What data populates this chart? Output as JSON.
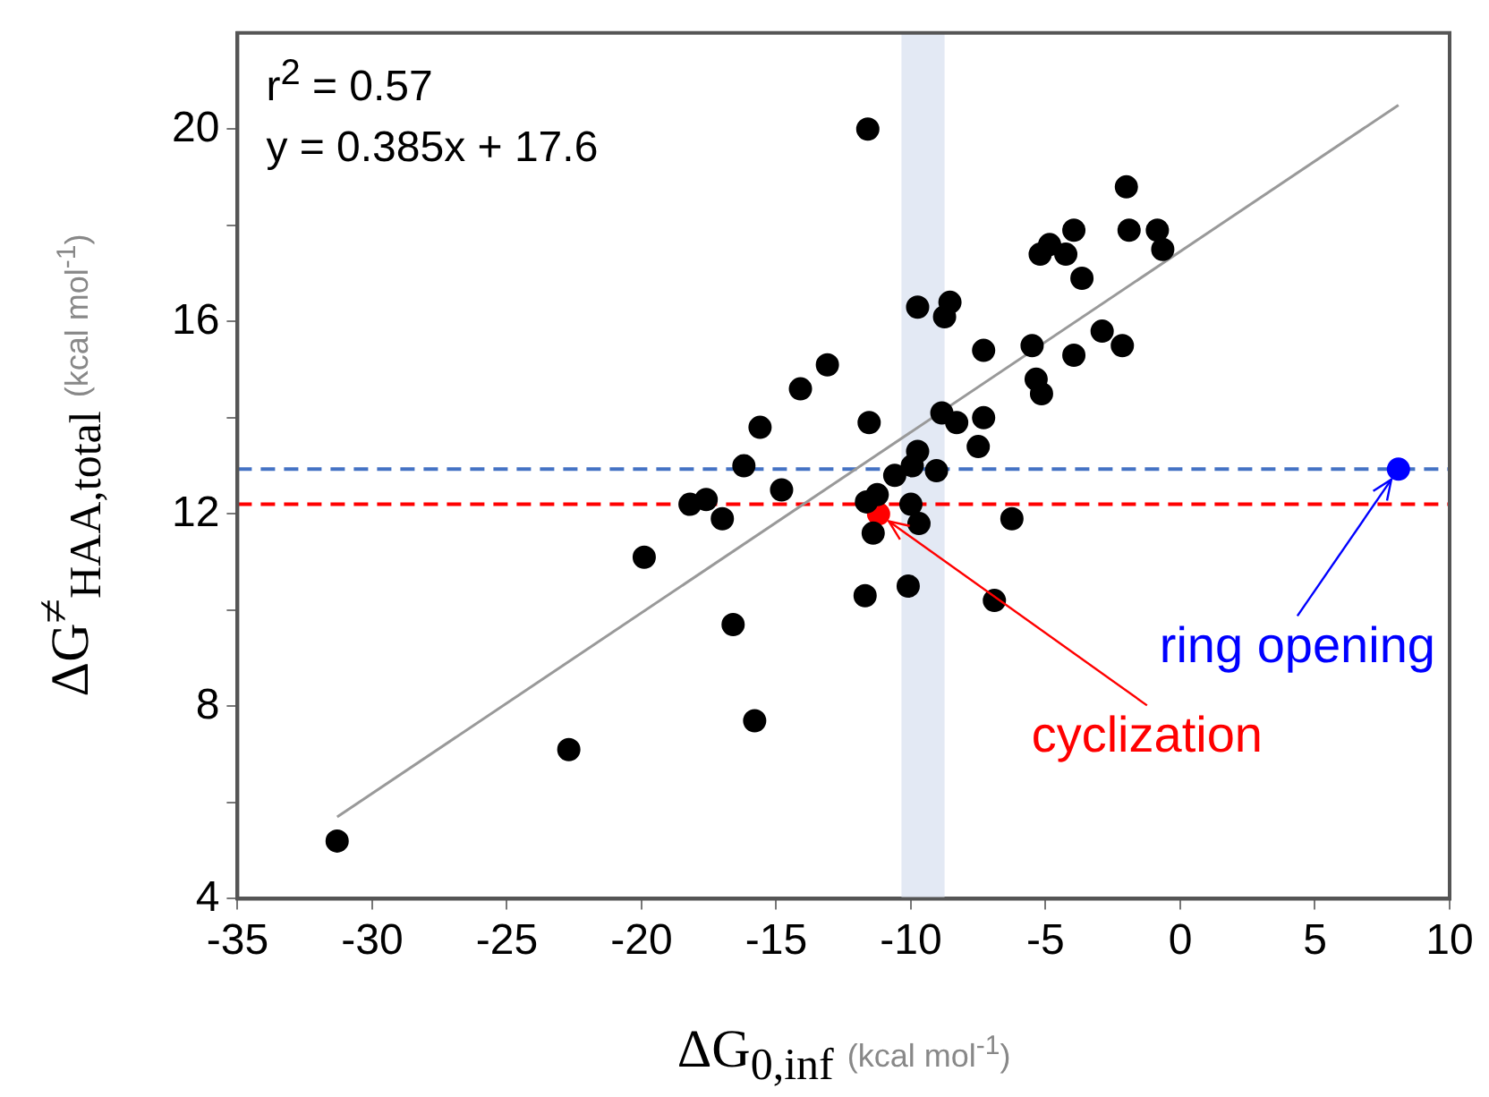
{
  "chart_data": {
    "type": "scatter",
    "xlabel": "ΔG$_{0,inf}$ (kcal mol$^{-1}$)",
    "ylabel": "ΔG$^{≠}$$_{HAA,total}$ (kcal mol$^{-1}$)",
    "xlim": [
      -35,
      10
    ],
    "xticks": [
      -35,
      -30,
      -25,
      -20,
      -15,
      -10,
      -5,
      0,
      5,
      10
    ],
    "ylim": [
      4,
      22
    ],
    "yticks": [
      4,
      {
        "value": 6,
        "label": null
      },
      8,
      {
        "value": 10,
        "label": null
      },
      12,
      {
        "value": 14,
        "label": null
      },
      16,
      {
        "value": 18,
        "label": null
      },
      20
    ],
    "marker": "circle",
    "series": [
      {
        "color": "#000000",
        "x": [
          -31.3,
          -22.7,
          -19.9,
          -18.2,
          -17.6,
          -17.0,
          -16.6,
          -16.2,
          -15.8,
          -15.6,
          -14.8,
          -14.1,
          -13.1,
          -11.6,
          -11.55,
          -11.7,
          -11.65,
          -11.4,
          -11.25,
          -10.6,
          -10.1,
          -10.0,
          -9.95,
          -9.75,
          -9.75,
          -9.7,
          -9.05,
          -8.85,
          -8.75,
          -8.55,
          -8.3,
          -7.5,
          -7.3,
          -7.3,
          -6.9,
          -6.25,
          -5.5,
          -5.35,
          -5.15,
          -5.2,
          -4.85,
          -4.25,
          -3.95,
          -3.95,
          -3.65,
          -2.9,
          -2.15,
          -2.0,
          -1.9,
          -0.85,
          -0.65
        ],
        "values": [
          5.2,
          7.1,
          11.1,
          12.2,
          12.3,
          11.9,
          9.7,
          13.0,
          7.7,
          13.8,
          12.5,
          14.6,
          15.1,
          20.0,
          13.9,
          10.3,
          12.25,
          11.6,
          12.4,
          12.8,
          10.5,
          12.2,
          13.0,
          13.3,
          16.3,
          11.8,
          12.9,
          14.1,
          16.1,
          16.4,
          13.9,
          13.4,
          14.0,
          15.4,
          10.2,
          11.9,
          15.5,
          14.8,
          14.5,
          17.4,
          17.6,
          17.4,
          17.9,
          15.3,
          16.9,
          15.8,
          15.5,
          18.8,
          17.9,
          17.9,
          17.5
        ]
      },
      {
        "color": "#ff0000",
        "x": [
          -11.2
        ],
        "values": [
          12.0
        ]
      },
      {
        "color": "#0000ff",
        "x": [
          8.1
        ],
        "values": [
          12.93
        ]
      },
      {
        "type": "line",
        "color": "#999999",
        "marker": "none",
        "x": [
          -31.3,
          8.1
        ],
        "values": [
          5.7,
          20.5
        ]
      }
    ],
    "ref_lines": [
      {
        "axis": "y",
        "value": 12.93,
        "color": "#4472c4",
        "line_style": "dashed"
      },
      {
        "axis": "y",
        "value": 12.2,
        "color": "#ff0000",
        "line_style": "dashed"
      }
    ],
    "bands": [
      {
        "axis": "x",
        "from": -10.35,
        "to": -8.75,
        "color": "#e3e9f4"
      }
    ],
    "annotations": [
      "r$^{2}$ = 0.57",
      "y = 0.385x + 17.6",
      {
        "text": "ring opening",
        "x": 8.1,
        "y": 12.93
      },
      {
        "text": "cyclization",
        "x": -11.2,
        "y": 12.0
      }
    ]
  }
}
